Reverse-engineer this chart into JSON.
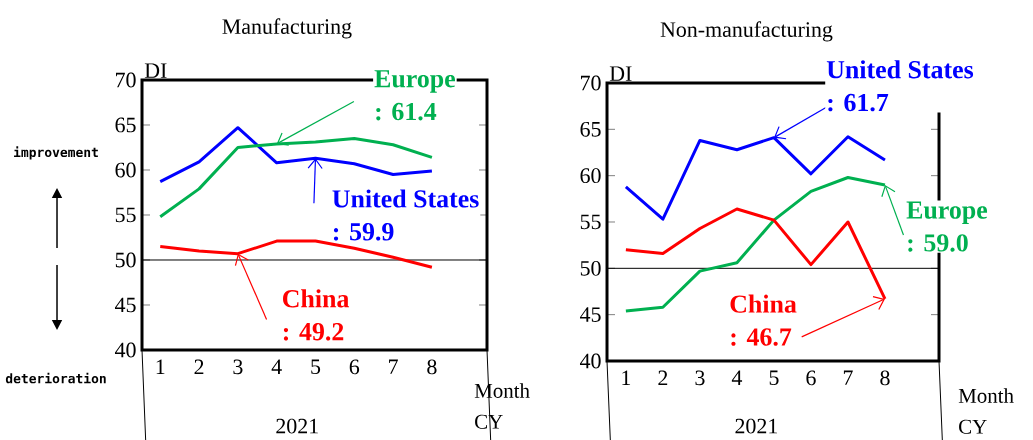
{
  "chart_data": [
    {
      "type": "line",
      "title": "Manufacturing",
      "ylabel": "DI",
      "xlabel": "Month CY",
      "categories": [
        "1",
        "2",
        "3",
        "4",
        "5",
        "6",
        "7",
        "8"
      ],
      "series": [
        {
          "name": "United States",
          "color": "#0000ff",
          "values": [
            58.7,
            60.9,
            64.7,
            60.8,
            61.3,
            60.7,
            59.5,
            59.9
          ]
        },
        {
          "name": "Europe",
          "color": "#00b050",
          "values": [
            54.8,
            57.9,
            62.5,
            62.9,
            63.1,
            63.5,
            62.8,
            61.4
          ]
        },
        {
          "name": "China",
          "color": "#ff0000",
          "values": [
            51.5,
            51.0,
            50.7,
            52.1,
            52.1,
            51.3,
            50.3,
            49.2
          ]
        }
      ],
      "ylim": [
        40,
        70
      ],
      "yticks": [
        40,
        45,
        50,
        55,
        60,
        65,
        70
      ],
      "ref_lines": [
        {
          "axis": "y",
          "value": 50
        }
      ],
      "annotations": [
        {
          "text": ": 59.9",
          "x": "5",
          "y": 61.3
        },
        {
          "text": ": 61.4",
          "x": "4",
          "y": 62.9
        },
        {
          "text": ": 49.2",
          "x": "3",
          "y": 50.7
        },
        "2021",
        "improvement",
        "deterioration"
      ],
      "legend": "right",
      "grid": false
    },
    {
      "type": "line",
      "title": "Non-manufacturing",
      "ylabel": "DI",
      "xlabel": "Month CY",
      "categories": [
        "1",
        "2",
        "3",
        "4",
        "5",
        "6",
        "7",
        "8"
      ],
      "series": [
        {
          "name": "United States",
          "color": "#0000ff",
          "values": [
            58.8,
            55.3,
            63.8,
            62.8,
            64.1,
            60.2,
            64.2,
            61.7
          ]
        },
        {
          "name": "Europe",
          "color": "#00b050",
          "values": [
            45.4,
            45.8,
            49.7,
            50.6,
            55.2,
            58.3,
            59.8,
            59.0
          ]
        },
        {
          "name": "China",
          "color": "#ff0000",
          "values": [
            52.0,
            51.6,
            54.3,
            56.4,
            55.2,
            50.4,
            55.0,
            46.7
          ]
        }
      ],
      "ylim": [
        40,
        70
      ],
      "yticks": [
        40,
        45,
        50,
        55,
        60,
        65,
        70
      ],
      "ref_lines": [
        {
          "axis": "y",
          "value": 50
        }
      ],
      "annotations": [
        {
          "text": ": 61.7",
          "x": "5",
          "y": 64.1
        },
        {
          "text": ": 59.0",
          "x": "8",
          "y": 59.0
        },
        {
          "text": ": 46.7",
          "x": "8",
          "y": 46.7
        },
        "2021"
      ],
      "legend": "right",
      "grid": false
    }
  ]
}
